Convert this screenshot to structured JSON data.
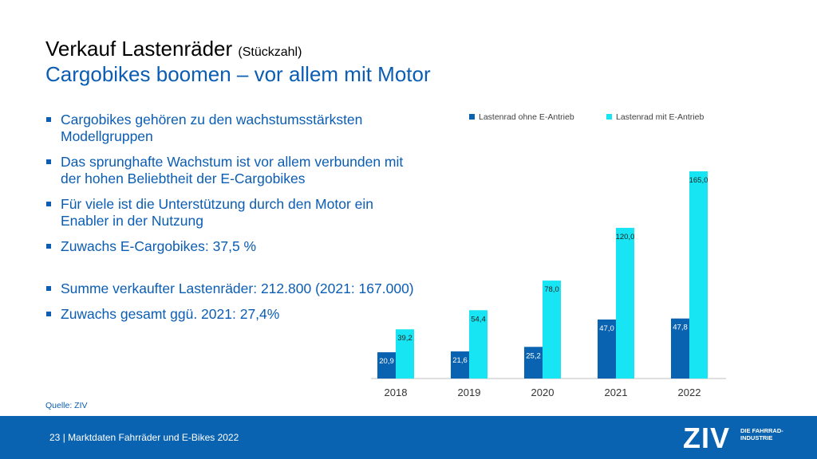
{
  "slide": {
    "title": "Verkauf Lastenräder",
    "title_note": "(Stückzahl)",
    "subtitle": "Cargobikes boomen – vor allem mit Motor",
    "bullets": [
      "Cargobikes gehören zu den wachstumsstärksten Modellgruppen",
      "Das sprunghafte Wachstum ist vor allem verbunden mit der hohen Beliebtheit der E-Cargobikes",
      "Für viele ist die Unterstützung durch den Motor ein Enabler in der Nutzung",
      "Zuwachs E-Cargobikes: 37,5 %",
      "Summe verkaufter Lastenräder: 212.800 (2021: 167.000)",
      "Zuwachs gesamt ggü. 2021: 27,4%"
    ],
    "source": "Quelle: ZIV"
  },
  "footer": {
    "page_number": "23",
    "text": "Marktdaten Fahrräder und E-Bikes 2022",
    "logo": "ZIV",
    "logo_sub": "DIE FAHRRAD-INDUSTRIE"
  },
  "colors": {
    "dark_blue": "#0a63b0",
    "light_blue": "#17e5f3",
    "text_blue": "#0b5db3",
    "footer_bg": "#0a63b0"
  },
  "chart_data": {
    "type": "bar",
    "categories": [
      "2018",
      "2019",
      "2020",
      "2021",
      "2022"
    ],
    "series": [
      {
        "name": "Lastenrad ohne E-Antrieb",
        "values": [
          20.9,
          21.6,
          25.2,
          47.0,
          47.8
        ],
        "labels": [
          "20,9",
          "21,6",
          "25,2",
          "47,0",
          "47,8"
        ],
        "color": "#0a63b0"
      },
      {
        "name": "Lastenrad mit E-Antrieb",
        "values": [
          39.2,
          54.4,
          78.0,
          120.0,
          165.0
        ],
        "labels": [
          "39,2",
          "54,4",
          "78,0",
          "120,0",
          "165,0"
        ],
        "color": "#17e5f3"
      }
    ],
    "ylim": [
      0,
      165
    ],
    "grid": false,
    "legend": "top"
  }
}
